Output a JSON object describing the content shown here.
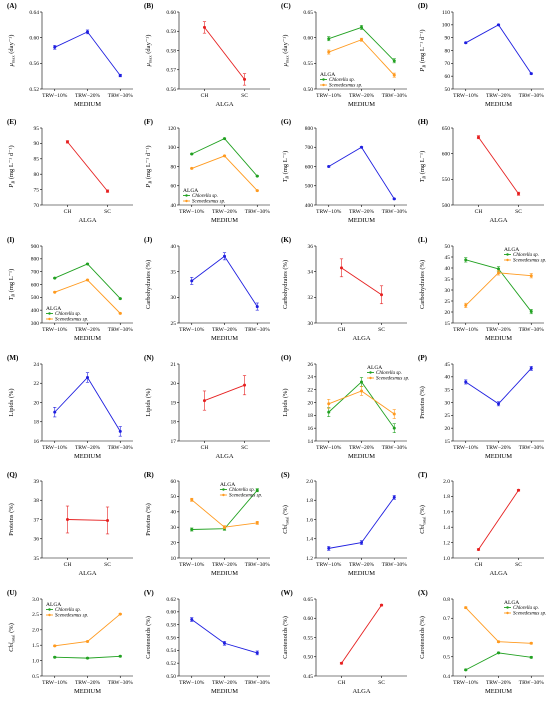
{
  "colors": {
    "medium": "#1f1fe0",
    "alga": "#e62020",
    "chlorella": "#21a121",
    "scenedesmus": "#ff9a1f"
  },
  "chart_data": [
    {
      "letter": "(A)",
      "type": "line",
      "categories": [
        "TRW−10%",
        "TRW−20%",
        "TRW−30%"
      ],
      "xlabel": "MEDIUM",
      "ylabel": "μ_max (day⁻¹)",
      "ylim": [
        0.52,
        0.64
      ],
      "yticks": [
        "0.52",
        "0.56",
        "0.60",
        "0.64"
      ],
      "series": [
        {
          "values": [
            0.585,
            0.609,
            0.541
          ],
          "errors": [
            0.003,
            0.003,
            0.002
          ],
          "color": "medium"
        }
      ]
    },
    {
      "letter": "(B)",
      "type": "line",
      "categories": [
        "CH",
        "SC"
      ],
      "xlabel": "ALGA",
      "ylabel": "μ_max (day⁻¹)",
      "ylim": [
        0.56,
        0.6
      ],
      "yticks": [
        "0.56",
        "0.57",
        "0.58",
        "0.59",
        "0.60"
      ],
      "series": [
        {
          "values": [
            0.592,
            0.565
          ],
          "errors": [
            0.003,
            0.003
          ],
          "color": "alga"
        }
      ]
    },
    {
      "letter": "(C)",
      "type": "line",
      "categories": [
        "TRW−10%",
        "TRW−20%",
        "TRW−30%"
      ],
      "xlabel": "MEDIUM",
      "ylabel": "μ_max (day⁻¹)",
      "ylim": [
        0.5,
        0.65
      ],
      "yticks": [
        "0.50",
        "0.55",
        "0.60",
        "0.65"
      ],
      "legend": {
        "title": "ALGA",
        "position": "bottom-left"
      },
      "series": [
        {
          "name": "Chlorella sp.",
          "values": [
            0.598,
            0.62,
            0.555
          ],
          "errors": [
            0.004,
            0.004,
            0.004
          ],
          "color": "chlorella"
        },
        {
          "name": "Scenedesmus sp.",
          "values": [
            0.572,
            0.596,
            0.527
          ],
          "errors": [
            0.004,
            0.003,
            0.004
          ],
          "color": "scenedesmus"
        }
      ]
    },
    {
      "letter": "(D)",
      "type": "line",
      "categories": [
        "TRW−10%",
        "TRW−20%",
        "TRW−30%"
      ],
      "xlabel": "MEDIUM",
      "ylabel": "P_B (mg L⁻¹ d⁻¹)",
      "ylim": [
        50,
        110
      ],
      "yticks": [
        "50",
        "60",
        "70",
        "80",
        "90",
        "100",
        "110"
      ],
      "series": [
        {
          "values": [
            86,
            100,
            62
          ],
          "errors": [
            0.5,
            0.5,
            0.5
          ],
          "color": "medium"
        }
      ]
    },
    {
      "letter": "(E)",
      "type": "line",
      "categories": [
        "CH",
        "SC"
      ],
      "xlabel": "ALGA",
      "ylabel": "P_B (mg L⁻¹ d⁻¹)",
      "ylim": [
        70,
        95
      ],
      "yticks": [
        "70",
        "75",
        "80",
        "85",
        "90",
        "95"
      ],
      "series": [
        {
          "values": [
            90.5,
            74.5
          ],
          "errors": [
            0.4,
            0.4
          ],
          "color": "alga"
        }
      ]
    },
    {
      "letter": "(F)",
      "type": "line",
      "categories": [
        "TRW−10%",
        "TRW−20%",
        "TRW−30%"
      ],
      "xlabel": "MEDIUM",
      "ylabel": "P_B (mg L⁻¹ d⁻¹)",
      "ylim": [
        40,
        120
      ],
      "yticks": [
        "40",
        "60",
        "80",
        "100",
        "120"
      ],
      "legend": {
        "title": "ALGA",
        "position": "bottom-left"
      },
      "series": [
        {
          "name": "Chlorella sp.",
          "values": [
            93,
            109,
            70
          ],
          "errors": [
            0.5,
            0.5,
            0.5
          ],
          "color": "chlorella"
        },
        {
          "name": "Scenedesmus sp.",
          "values": [
            78,
            91,
            55
          ],
          "errors": [
            0.5,
            0.5,
            0.5
          ],
          "color": "scenedesmus"
        }
      ]
    },
    {
      "letter": "(G)",
      "type": "line",
      "categories": [
        "TRW−10%",
        "TRW−20%",
        "TRW−30%"
      ],
      "xlabel": "MEDIUM",
      "ylabel": "T_B (mg L⁻¹)",
      "ylim": [
        400,
        800
      ],
      "yticks": [
        "400",
        "500",
        "600",
        "700",
        "800"
      ],
      "series": [
        {
          "values": [
            600,
            700,
            432
          ],
          "errors": [
            3,
            3,
            3
          ],
          "color": "medium"
        }
      ]
    },
    {
      "letter": "(H)",
      "type": "line",
      "categories": [
        "CH",
        "SC"
      ],
      "xlabel": "ALGA",
      "ylabel": "T_B (mg L⁻¹)",
      "ylim": [
        500,
        650
      ],
      "yticks": [
        "500",
        "550",
        "600",
        "650"
      ],
      "series": [
        {
          "values": [
            632,
            522
          ],
          "errors": [
            3,
            3
          ],
          "color": "alga"
        }
      ]
    },
    {
      "letter": "(I)",
      "type": "line",
      "categories": [
        "TRW−10%",
        "TRW−20%",
        "TRW−30%"
      ],
      "xlabel": "MEDIUM",
      "ylabel": "T_B (mg L⁻¹)",
      "ylim": [
        300,
        900
      ],
      "yticks": [
        "300",
        "400",
        "500",
        "600",
        "700",
        "800",
        "900"
      ],
      "legend": {
        "title": "ALGA",
        "position": "bottom-left"
      },
      "series": [
        {
          "name": "Chlorella sp.",
          "values": [
            650,
            760,
            490
          ],
          "errors": [
            4,
            4,
            4
          ],
          "color": "chlorella"
        },
        {
          "name": "Scenedesmus sp.",
          "values": [
            540,
            635,
            375
          ],
          "errors": [
            4,
            4,
            4
          ],
          "color": "scenedesmus"
        }
      ]
    },
    {
      "letter": "(J)",
      "type": "line",
      "categories": [
        "TRW−10%",
        "TRW−20%",
        "TRW−30%"
      ],
      "xlabel": "MEDIUM",
      "ylabel": "Carbohydrates (%)",
      "ylim": [
        25,
        40
      ],
      "yticks": [
        "25",
        "30",
        "35",
        "40"
      ],
      "series": [
        {
          "values": [
            33.2,
            38.0,
            28.2
          ],
          "errors": [
            0.7,
            0.7,
            0.7
          ],
          "color": "medium"
        }
      ]
    },
    {
      "letter": "(K)",
      "type": "line",
      "categories": [
        "CH",
        "SC"
      ],
      "xlabel": "ALGA",
      "ylabel": "Carbohydrates (%)",
      "ylim": [
        30,
        36
      ],
      "yticks": [
        "30",
        "32",
        "34",
        "36"
      ],
      "series": [
        {
          "values": [
            34.3,
            32.2
          ],
          "errors": [
            0.7,
            0.7
          ],
          "color": "alga"
        }
      ]
    },
    {
      "letter": "(L)",
      "type": "line",
      "categories": [
        "TRW−10%",
        "TRW−20%",
        "TRW−30%"
      ],
      "xlabel": "MEDIUM",
      "ylabel": "Carbohydrates (%)",
      "ylim": [
        15,
        50
      ],
      "yticks": [
        "15",
        "20",
        "25",
        "30",
        "35",
        "40",
        "45",
        "50"
      ],
      "legend": {
        "title": "ALGA",
        "position": "top-right"
      },
      "series": [
        {
          "name": "Chlorella sp.",
          "values": [
            43.7,
            39.6,
            20.2
          ],
          "errors": [
            1.0,
            1.0,
            1.0
          ],
          "color": "chlorella"
        },
        {
          "name": "Scenedesmus sp.",
          "values": [
            23.0,
            37.8,
            36.5
          ],
          "errors": [
            1.0,
            1.0,
            1.0
          ],
          "color": "scenedesmus"
        }
      ]
    },
    {
      "letter": "(M)",
      "type": "line",
      "categories": [
        "TRW−10%",
        "TRW−20%",
        "TRW−30%"
      ],
      "xlabel": "MEDIUM",
      "ylabel": "Lipids (%)",
      "ylim": [
        16,
        24
      ],
      "yticks": [
        "16",
        "18",
        "20",
        "22",
        "24"
      ],
      "series": [
        {
          "values": [
            19.0,
            22.6,
            17.0
          ],
          "errors": [
            0.5,
            0.5,
            0.5
          ],
          "color": "medium"
        }
      ]
    },
    {
      "letter": "(N)",
      "type": "line",
      "categories": [
        "CH",
        "SC"
      ],
      "xlabel": "ALGA",
      "ylabel": "Lipids (%)",
      "ylim": [
        17,
        21
      ],
      "yticks": [
        "17",
        "18",
        "19",
        "20",
        "21"
      ],
      "series": [
        {
          "values": [
            19.1,
            19.9
          ],
          "errors": [
            0.5,
            0.5
          ],
          "color": "alga"
        }
      ]
    },
    {
      "letter": "(O)",
      "type": "line",
      "categories": [
        "TRW−10%",
        "TRW−20%",
        "TRW−30%"
      ],
      "xlabel": "MEDIUM",
      "ylabel": "Lipids (%)",
      "ylim": [
        14,
        26
      ],
      "yticks": [
        "14",
        "16",
        "18",
        "20",
        "22",
        "24",
        "26"
      ],
      "legend": {
        "title": "ALGA",
        "position": "top-right"
      },
      "series": [
        {
          "name": "Chlorella sp.",
          "values": [
            18.5,
            23.2,
            16.0
          ],
          "errors": [
            0.7,
            0.7,
            0.7
          ],
          "color": "chlorella"
        },
        {
          "name": "Scenedesmus sp.",
          "values": [
            19.8,
            21.8,
            18.2
          ],
          "errors": [
            0.7,
            0.7,
            0.7
          ],
          "color": "scenedesmus"
        }
      ]
    },
    {
      "letter": "(P)",
      "type": "line",
      "categories": [
        "TRW−10%",
        "TRW−20%",
        "TRW−30%"
      ],
      "xlabel": "MEDIUM",
      "ylabel": "Proteins (%)",
      "ylim": [
        15,
        45
      ],
      "yticks": [
        "15",
        "20",
        "25",
        "30",
        "35",
        "40",
        "45"
      ],
      "series": [
        {
          "values": [
            38.0,
            29.5,
            43.3
          ],
          "errors": [
            0.8,
            0.8,
            0.8
          ],
          "color": "medium"
        }
      ]
    },
    {
      "letter": "(Q)",
      "type": "line",
      "categories": [
        "CH",
        "SC"
      ],
      "xlabel": "ALGA",
      "ylabel": "Proteins (%)",
      "ylim": [
        35,
        39
      ],
      "yticks": [
        "35",
        "36",
        "37",
        "38",
        "39"
      ],
      "series": [
        {
          "values": [
            37.0,
            36.95
          ],
          "errors": [
            0.7,
            0.7
          ],
          "color": "alga"
        }
      ]
    },
    {
      "letter": "(R)",
      "type": "line",
      "categories": [
        "TRW−10%",
        "TRW−20%",
        "TRW−30%"
      ],
      "xlabel": "MEDIUM",
      "ylabel": "Proteins (%)",
      "ylim": [
        10,
        60
      ],
      "yticks": [
        "10",
        "20",
        "30",
        "40",
        "50",
        "60"
      ],
      "legend": {
        "title": "ALGA",
        "position": "top-center"
      },
      "series": [
        {
          "name": "Chlorella sp.",
          "values": [
            28.5,
            29.0,
            54.0
          ],
          "errors": [
            1.0,
            1.0,
            1.0
          ],
          "color": "chlorella"
        },
        {
          "name": "Scenedesmus sp.",
          "values": [
            47.8,
            30.0,
            32.8
          ],
          "errors": [
            1.0,
            1.0,
            1.0
          ],
          "color": "scenedesmus"
        }
      ]
    },
    {
      "letter": "(S)",
      "type": "line",
      "categories": [
        "TRW−10%",
        "TRW−20%",
        "TRW−30%"
      ],
      "xlabel": "MEDIUM",
      "ylabel": "Chl_total (%)",
      "ylim": [
        1.2,
        2.0
      ],
      "yticks": [
        "1.2",
        "1.4",
        "1.6",
        "1.8",
        "2.0"
      ],
      "series": [
        {
          "values": [
            1.3,
            1.36,
            1.83
          ],
          "errors": [
            0.02,
            0.02,
            0.02
          ],
          "color": "medium"
        }
      ]
    },
    {
      "letter": "(T)",
      "type": "line",
      "categories": [
        "CH",
        "SC"
      ],
      "xlabel": "ALGA",
      "ylabel": "Chl_total (%)",
      "ylim": [
        1.0,
        2.0
      ],
      "yticks": [
        "1.0",
        "1.2",
        "1.4",
        "1.6",
        "1.8",
        "2.0"
      ],
      "series": [
        {
          "values": [
            1.11,
            1.88
          ],
          "errors": [
            0.01,
            0.01
          ],
          "color": "alga"
        }
      ]
    },
    {
      "letter": "(U)",
      "type": "line",
      "categories": [
        "TRW−10%",
        "TRW−20%",
        "TRW−30%"
      ],
      "xlabel": "MEDIUM",
      "ylabel": "Chl_total (%)",
      "ylim": [
        0.5,
        3.0
      ],
      "yticks": [
        "0.5",
        "1.0",
        "1.5",
        "2.0",
        "2.5",
        "3.0"
      ],
      "legend": {
        "title": "ALGA",
        "position": "top-left"
      },
      "series": [
        {
          "name": "Chlorella sp.",
          "values": [
            1.11,
            1.08,
            1.14
          ],
          "errors": [
            0.02,
            0.02,
            0.02
          ],
          "color": "chlorella"
        },
        {
          "name": "Scenedesmus sp.",
          "values": [
            1.48,
            1.62,
            2.51
          ],
          "errors": [
            0.02,
            0.02,
            0.02
          ],
          "color": "scenedesmus"
        }
      ]
    },
    {
      "letter": "(V)",
      "type": "line",
      "categories": [
        "TRW−10%",
        "TRW−20%",
        "TRW−30%"
      ],
      "xlabel": "MEDIUM",
      "ylabel": "Carotenoids (%)",
      "ylim": [
        0.5,
        0.62
      ],
      "yticks": [
        "0.50",
        "0.52",
        "0.54",
        "0.56",
        "0.58",
        "0.60",
        "0.62"
      ],
      "series": [
        {
          "values": [
            0.588,
            0.551,
            0.536
          ],
          "errors": [
            0.003,
            0.003,
            0.003
          ],
          "color": "medium"
        }
      ]
    },
    {
      "letter": "(W)",
      "type": "line",
      "categories": [
        "CH",
        "SC"
      ],
      "xlabel": "ALGA",
      "ylabel": "Carotenoids (%)",
      "ylim": [
        0.45,
        0.65
      ],
      "yticks": [
        "0.45",
        "0.50",
        "0.55",
        "0.60",
        "0.65"
      ],
      "series": [
        {
          "values": [
            0.483,
            0.634
          ],
          "errors": [
            0.002,
            0.002
          ],
          "color": "alga"
        }
      ]
    },
    {
      "letter": "(X)",
      "type": "line",
      "categories": [
        "TRW−10%",
        "TRW−20%",
        "TRW−30%"
      ],
      "xlabel": "MEDIUM",
      "ylabel": "Carotenoids (%)",
      "ylim": [
        0.4,
        0.8
      ],
      "yticks": [
        "0.4",
        "0.5",
        "0.6",
        "0.7",
        "0.8"
      ],
      "legend": {
        "title": "ALGA",
        "position": "top-right"
      },
      "series": [
        {
          "name": "Chlorella sp.",
          "values": [
            0.432,
            0.52,
            0.497
          ],
          "errors": [
            0.004,
            0.004,
            0.004
          ],
          "color": "chlorella"
        },
        {
          "name": "Scenedesmus sp.",
          "values": [
            0.755,
            0.578,
            0.57
          ],
          "errors": [
            0.004,
            0.004,
            0.004
          ],
          "color": "scenedesmus"
        }
      ]
    }
  ]
}
